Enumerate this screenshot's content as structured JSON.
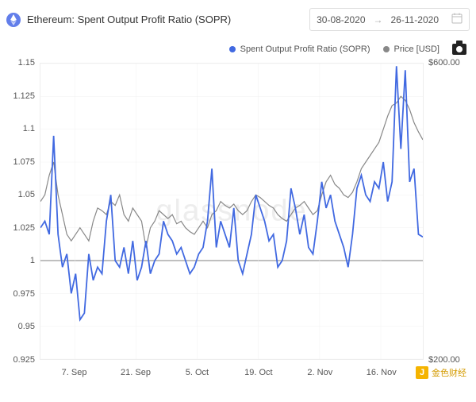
{
  "header": {
    "title": "Ethereum: Spent Output Profit Ratio (SOPR)",
    "icon_bg": "#627eea",
    "date_picker": {
      "from": "30-08-2020",
      "arrow": "→",
      "to": "26-11-2020"
    }
  },
  "legend": {
    "series1": {
      "label": "Spent Output Profit Ratio (SOPR)",
      "color": "#4169e1"
    },
    "series2": {
      "label": "Price [USD]",
      "color": "#888888"
    }
  },
  "chart": {
    "type": "line",
    "watermark": "glassnode",
    "background_color": "#ffffff",
    "grid_color": "#eeeeee",
    "baseline_value": 1.0,
    "left_axis": {
      "min": 0.925,
      "max": 1.15,
      "step": 0.025,
      "ticks": [
        0.925,
        0.95,
        0.975,
        1,
        1.025,
        1.05,
        1.075,
        1.1,
        1.125,
        1.15
      ]
    },
    "right_axis": {
      "min": 200,
      "max": 600,
      "ticks": [
        {
          "value": 200,
          "label": "$200.00"
        },
        {
          "value": 600,
          "label": "$600.00"
        }
      ]
    },
    "x_axis": {
      "labels": [
        {
          "pos": 0.09,
          "text": "7. Sep"
        },
        {
          "pos": 0.25,
          "text": "21. Sep"
        },
        {
          "pos": 0.41,
          "text": "5. Oct"
        },
        {
          "pos": 0.57,
          "text": "19. Oct"
        },
        {
          "pos": 0.73,
          "text": "2. Nov"
        },
        {
          "pos": 0.89,
          "text": "16. Nov"
        }
      ]
    },
    "sopr": {
      "color": "#4169e1",
      "stroke_width": 1.8,
      "data": [
        1.025,
        1.03,
        1.02,
        1.095,
        1.02,
        0.995,
        1.005,
        0.975,
        0.99,
        0.955,
        0.96,
        1.005,
        0.985,
        0.995,
        0.99,
        1.03,
        1.05,
        1.0,
        0.995,
        1.01,
        0.99,
        1.015,
        0.985,
        0.995,
        1.015,
        0.99,
        1.0,
        1.005,
        1.03,
        1.02,
        1.015,
        1.005,
        1.01,
        1.0,
        0.99,
        0.995,
        1.005,
        1.01,
        1.03,
        1.07,
        1.01,
        1.03,
        1.02,
        1.01,
        1.04,
        1.0,
        0.99,
        1.005,
        1.02,
        1.05,
        1.04,
        1.03,
        1.015,
        1.02,
        0.995,
        1.0,
        1.015,
        1.055,
        1.04,
        1.02,
        1.035,
        1.01,
        1.005,
        1.03,
        1.06,
        1.04,
        1.05,
        1.03,
        1.02,
        1.01,
        0.995,
        1.02,
        1.055,
        1.065,
        1.05,
        1.045,
        1.06,
        1.055,
        1.075,
        1.045,
        1.06,
        1.148,
        1.085,
        1.145,
        1.06,
        1.07,
        1.02,
        1.018
      ]
    },
    "price": {
      "color": "#888888",
      "stroke_width": 1.2,
      "data": [
        1.045,
        1.05,
        1.065,
        1.075,
        1.05,
        1.035,
        1.02,
        1.015,
        1.02,
        1.025,
        1.02,
        1.015,
        1.03,
        1.04,
        1.038,
        1.035,
        1.045,
        1.042,
        1.05,
        1.035,
        1.03,
        1.04,
        1.035,
        1.03,
        1.01,
        1.025,
        1.03,
        1.038,
        1.035,
        1.032,
        1.035,
        1.028,
        1.03,
        1.025,
        1.022,
        1.02,
        1.025,
        1.03,
        1.025,
        1.035,
        1.038,
        1.045,
        1.042,
        1.04,
        1.043,
        1.038,
        1.035,
        1.038,
        1.045,
        1.05,
        1.048,
        1.045,
        1.042,
        1.04,
        1.035,
        1.032,
        1.03,
        1.035,
        1.04,
        1.042,
        1.045,
        1.04,
        1.035,
        1.038,
        1.05,
        1.06,
        1.065,
        1.058,
        1.055,
        1.05,
        1.048,
        1.052,
        1.06,
        1.07,
        1.075,
        1.08,
        1.085,
        1.09,
        1.1,
        1.11,
        1.118,
        1.12,
        1.125,
        1.122,
        1.115,
        1.105,
        1.098,
        1.092
      ]
    }
  },
  "badge": {
    "text": "金色财经"
  }
}
